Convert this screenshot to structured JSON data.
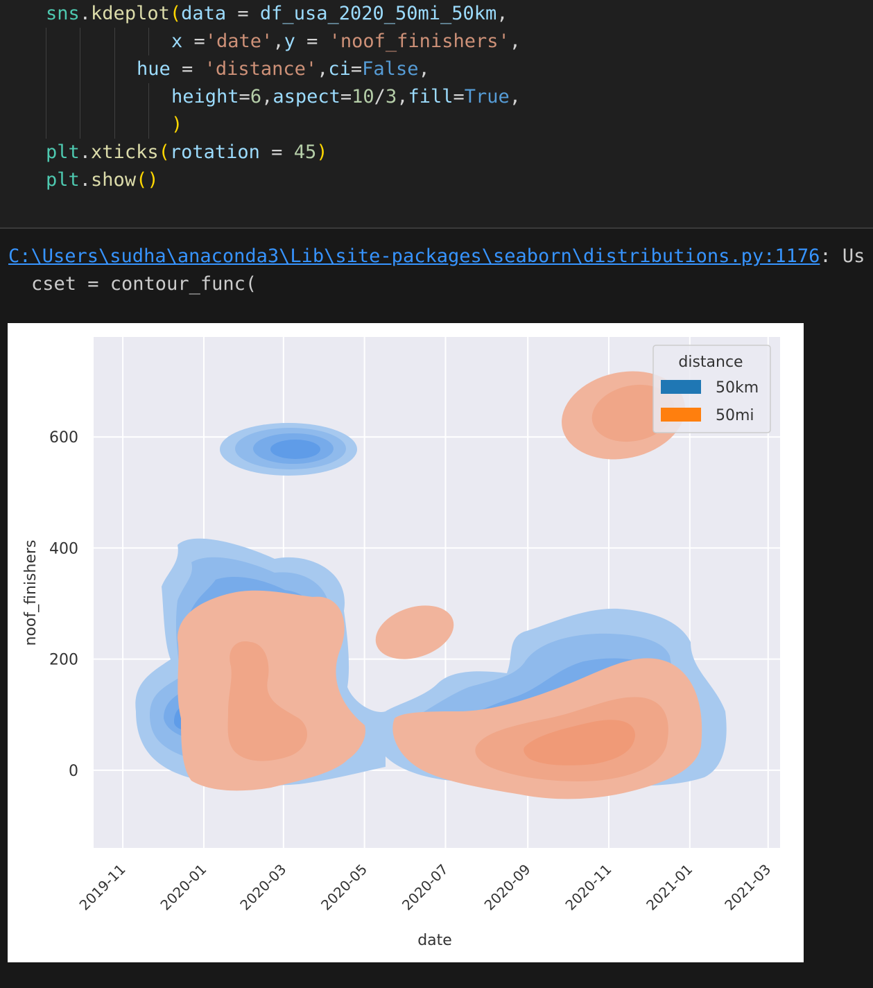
{
  "code": {
    "lines": [
      [
        [
          "sns",
          "t-mod"
        ],
        [
          ".",
          "t-op"
        ],
        [
          "kdeplot",
          "t-fn"
        ],
        [
          "(",
          "t-p1"
        ],
        [
          "data",
          "t-var"
        ],
        [
          " = ",
          "t-op"
        ],
        [
          "df_usa_2020_50mi_50km",
          "t-var"
        ],
        [
          ",",
          "t-op"
        ]
      ],
      [
        [
          "x",
          "t-var"
        ],
        [
          " =",
          "t-op"
        ],
        [
          "'date'",
          "t-str"
        ],
        [
          ",",
          "t-op"
        ],
        [
          "y",
          "t-var"
        ],
        [
          " = ",
          "t-op"
        ],
        [
          "'noof_finishers'",
          "t-str"
        ],
        [
          ",",
          "t-op"
        ]
      ],
      [
        [
          "hue",
          "t-var"
        ],
        [
          " = ",
          "t-op"
        ],
        [
          "'distance'",
          "t-str"
        ],
        [
          ",",
          "t-op"
        ],
        [
          "ci",
          "t-var"
        ],
        [
          "=",
          "t-op"
        ],
        [
          "False",
          "t-kw"
        ],
        [
          ",",
          "t-op"
        ]
      ],
      [
        [
          "height",
          "t-var"
        ],
        [
          "=",
          "t-op"
        ],
        [
          "6",
          "t-num"
        ],
        [
          ",",
          "t-op"
        ],
        [
          "aspect",
          "t-var"
        ],
        [
          "=",
          "t-op"
        ],
        [
          "10",
          "t-num"
        ],
        [
          "/",
          "t-op"
        ],
        [
          "3",
          "t-num"
        ],
        [
          ",",
          "t-op"
        ],
        [
          "fill",
          "t-var"
        ],
        [
          "=",
          "t-op"
        ],
        [
          "True",
          "t-kw"
        ],
        [
          ",",
          "t-op"
        ]
      ],
      [
        [
          ")",
          "t-p1"
        ]
      ],
      [
        [
          "plt",
          "t-mod"
        ],
        [
          ".",
          "t-op"
        ],
        [
          "xticks",
          "t-fn"
        ],
        [
          "(",
          "t-p1"
        ],
        [
          "rotation",
          "t-var"
        ],
        [
          " = ",
          "t-op"
        ],
        [
          "45",
          "t-num"
        ],
        [
          ")",
          "t-p1"
        ]
      ],
      [
        [
          "plt",
          "t-mod"
        ],
        [
          ".",
          "t-op"
        ],
        [
          "show",
          "t-fn"
        ],
        [
          "(",
          "t-p1"
        ],
        [
          ")",
          "t-p1"
        ]
      ]
    ]
  },
  "output": {
    "warning_path": "C:\\Users\\sudha\\anaconda3\\Lib\\site-packages\\seaborn\\distributions.py:1176",
    "warning_suffix": ": Us",
    "warning_line2": "cset = contour_func("
  },
  "colors": {
    "editor_bg": "#1f1f1f",
    "output_bg": "#181818",
    "plot_bg": "#eaeaf2",
    "50km": "#1f77b4",
    "50mi": "#ff7f0e"
  },
  "chart_data": {
    "type": "kde",
    "xlabel": "date",
    "ylabel": "noof_finishers",
    "x_ticks": [
      "2019-11",
      "2020-01",
      "2020-03",
      "2020-05",
      "2020-07",
      "2020-09",
      "2020-11",
      "2021-01",
      "2021-03"
    ],
    "y_ticks": [
      0,
      200,
      400,
      600
    ],
    "ylim": [
      -140,
      780
    ],
    "xlim": [
      "2019-10-10",
      "2021-03-10"
    ],
    "grid": true,
    "legend": {
      "title": "distance",
      "placement": "upper right",
      "entries": [
        {
          "label": "50km",
          "color": "#1f77b4"
        },
        {
          "label": "50mi",
          "color": "#ff7f0e"
        }
      ]
    },
    "series": [
      {
        "name": "50km",
        "regions": [
          {
            "center": [
              "2020-02-25",
              575
            ],
            "spread": [
              "2020-01-20",
              "2020-04-05",
              610,
              540
            ]
          },
          {
            "center": [
              "2019-12-20",
              80
            ],
            "spread": [
              "2019-11-25",
              "2020-04-01",
              395,
              5
            ]
          },
          {
            "center": [
              "2020-09-15",
              60
            ],
            "spread": [
              "2020-05-05",
              "2021-01-28",
              285,
              -25
            ]
          }
        ]
      },
      {
        "name": "50mi",
        "regions": [
          {
            "center": [
              "2020-10-30",
              640
            ],
            "spread": [
              "2020-09-25",
              "2020-12-25",
              720,
              560
            ]
          },
          {
            "center": [
              "2020-05-28",
              235
            ],
            "spread": [
              "2020-05-10",
              "2020-06-30",
              295,
              200
            ]
          },
          {
            "center": [
              "2020-02-20",
              100
            ],
            "spread": [
              "2019-12-30",
              "2020-04-10",
              315,
              -40
            ]
          },
          {
            "center": [
              "2020-10-01",
              50
            ],
            "spread": [
              "2020-05-20",
              "2020-12-28",
              215,
              -50
            ]
          }
        ]
      }
    ]
  }
}
